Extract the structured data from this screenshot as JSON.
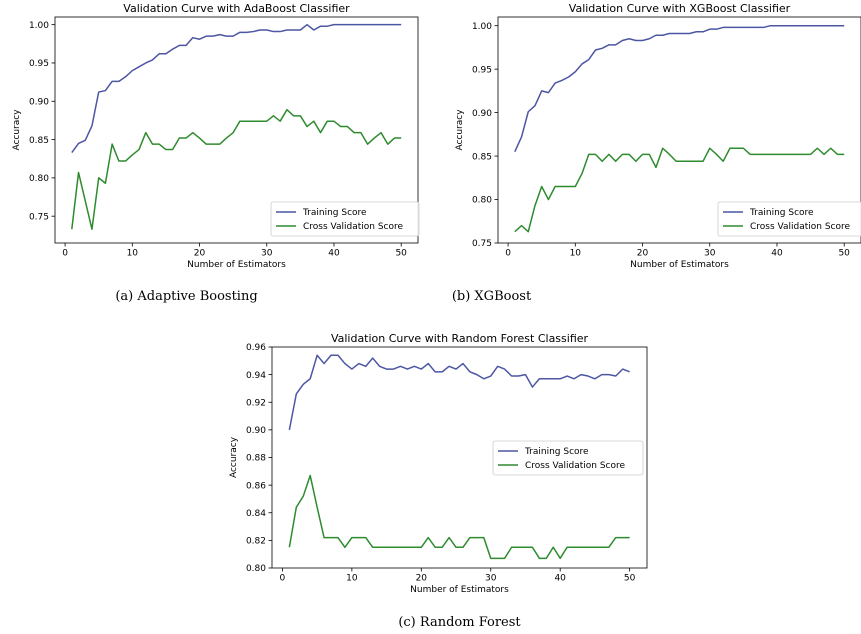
{
  "chart_data": [
    {
      "type": "line",
      "title": "Validation Curve with AdaBoost Classifier",
      "xlabel": "Number of Estimators",
      "ylabel": "Accuracy",
      "caption": "(a) Adaptive Boosting",
      "xlim": [
        -1.5,
        52.5
      ],
      "ylim": [
        0.715,
        1.01
      ],
      "xticks": [
        0,
        10,
        20,
        30,
        40,
        50
      ],
      "yticks": [
        0.75,
        0.8,
        0.85,
        0.9,
        0.95,
        1.0
      ],
      "legend_position": "lower-right",
      "series": [
        {
          "name": "Training Score",
          "color": "#4c56a3",
          "x": [
            1,
            2,
            3,
            4,
            5,
            6,
            7,
            8,
            9,
            10,
            11,
            12,
            13,
            14,
            15,
            16,
            17,
            18,
            19,
            20,
            21,
            22,
            23,
            24,
            25,
            26,
            27,
            28,
            29,
            30,
            31,
            32,
            33,
            34,
            35,
            36,
            37,
            38,
            39,
            40,
            41,
            42,
            43,
            44,
            45,
            46,
            47,
            48,
            49,
            50
          ],
          "values": [
            0.833,
            0.845,
            0.849,
            0.868,
            0.912,
            0.914,
            0.926,
            0.926,
            0.932,
            0.94,
            0.945,
            0.95,
            0.954,
            0.962,
            0.962,
            0.968,
            0.973,
            0.973,
            0.983,
            0.981,
            0.985,
            0.985,
            0.987,
            0.985,
            0.985,
            0.99,
            0.99,
            0.991,
            0.993,
            0.993,
            0.991,
            0.991,
            0.993,
            0.993,
            0.993,
            1.0,
            0.993,
            0.998,
            0.998,
            1.0,
            1.0,
            1.0,
            1.0,
            1.0,
            1.0,
            1.0,
            1.0,
            1.0,
            1.0,
            1.0
          ]
        },
        {
          "name": "Cross Validation Score",
          "color": "#2e8b2e",
          "x": [
            1,
            2,
            3,
            4,
            5,
            6,
            7,
            8,
            9,
            10,
            11,
            12,
            13,
            14,
            15,
            16,
            17,
            18,
            19,
            20,
            21,
            22,
            23,
            24,
            25,
            26,
            27,
            28,
            29,
            30,
            31,
            32,
            33,
            34,
            35,
            36,
            37,
            38,
            39,
            40,
            41,
            42,
            43,
            44,
            45,
            46,
            47,
            48,
            49,
            50
          ],
          "values": [
            0.733,
            0.807,
            0.77,
            0.733,
            0.8,
            0.793,
            0.844,
            0.822,
            0.822,
            0.83,
            0.837,
            0.859,
            0.844,
            0.844,
            0.837,
            0.837,
            0.852,
            0.852,
            0.859,
            0.852,
            0.844,
            0.844,
            0.844,
            0.852,
            0.859,
            0.874,
            0.874,
            0.874,
            0.874,
            0.874,
            0.881,
            0.874,
            0.889,
            0.881,
            0.881,
            0.867,
            0.874,
            0.859,
            0.874,
            0.874,
            0.867,
            0.867,
            0.859,
            0.859,
            0.844,
            0.852,
            0.859,
            0.844,
            0.852,
            0.852
          ]
        }
      ]
    },
    {
      "type": "line",
      "title": "Validation Curve with XGBoost Classifier",
      "xlabel": "Number of Estimators",
      "ylabel": "Accuracy",
      "caption": "(b) XGBoost",
      "xlim": [
        -1.5,
        52.5
      ],
      "ylim": [
        0.75,
        1.01
      ],
      "xticks": [
        0,
        10,
        20,
        30,
        40,
        50
      ],
      "yticks": [
        0.75,
        0.8,
        0.85,
        0.9,
        0.95,
        1.0
      ],
      "legend_position": "lower-right",
      "series": [
        {
          "name": "Training Score",
          "color": "#4c56a3",
          "x": [
            1,
            2,
            3,
            4,
            5,
            6,
            7,
            8,
            9,
            10,
            11,
            12,
            13,
            14,
            15,
            16,
            17,
            18,
            19,
            20,
            21,
            22,
            23,
            24,
            25,
            26,
            27,
            28,
            29,
            30,
            31,
            32,
            33,
            34,
            35,
            36,
            37,
            38,
            39,
            40,
            41,
            42,
            43,
            44,
            45,
            46,
            47,
            48,
            49,
            50
          ],
          "values": [
            0.855,
            0.872,
            0.901,
            0.908,
            0.925,
            0.923,
            0.934,
            0.937,
            0.941,
            0.947,
            0.956,
            0.961,
            0.972,
            0.974,
            0.978,
            0.978,
            0.983,
            0.985,
            0.983,
            0.983,
            0.985,
            0.989,
            0.989,
            0.991,
            0.991,
            0.991,
            0.991,
            0.993,
            0.993,
            0.996,
            0.996,
            0.998,
            0.998,
            0.998,
            0.998,
            0.998,
            0.998,
            0.998,
            1.0,
            1.0,
            1.0,
            1.0,
            1.0,
            1.0,
            1.0,
            1.0,
            1.0,
            1.0,
            1.0,
            1.0
          ]
        },
        {
          "name": "Cross Validation Score",
          "color": "#2e8b2e",
          "x": [
            1,
            2,
            3,
            4,
            5,
            6,
            7,
            8,
            9,
            10,
            11,
            12,
            13,
            14,
            15,
            16,
            17,
            18,
            19,
            20,
            21,
            22,
            23,
            24,
            25,
            26,
            27,
            28,
            29,
            30,
            31,
            32,
            33,
            34,
            35,
            36,
            37,
            38,
            39,
            40,
            41,
            42,
            43,
            44,
            45,
            46,
            47,
            48,
            49,
            50
          ],
          "values": [
            0.763,
            0.77,
            0.763,
            0.793,
            0.815,
            0.8,
            0.815,
            0.815,
            0.815,
            0.815,
            0.83,
            0.852,
            0.852,
            0.844,
            0.852,
            0.844,
            0.852,
            0.852,
            0.844,
            0.852,
            0.852,
            0.837,
            0.859,
            0.852,
            0.844,
            0.844,
            0.844,
            0.844,
            0.844,
            0.859,
            0.852,
            0.844,
            0.859,
            0.859,
            0.859,
            0.852,
            0.852,
            0.852,
            0.852,
            0.852,
            0.852,
            0.852,
            0.852,
            0.852,
            0.852,
            0.859,
            0.852,
            0.859,
            0.852,
            0.852
          ]
        }
      ]
    },
    {
      "type": "line",
      "title": "Validation Curve with Random Forest Classifier",
      "xlabel": "Number of Estimators",
      "ylabel": "Accuracy",
      "caption": "(c) Random Forest",
      "xlim": [
        -1.5,
        52.5
      ],
      "ylim": [
        0.8,
        0.96
      ],
      "xticks": [
        0,
        10,
        20,
        30,
        40,
        50
      ],
      "yticks": [
        0.8,
        0.82,
        0.84,
        0.86,
        0.88,
        0.9,
        0.92,
        0.94,
        0.96
      ],
      "legend_position": "center-right",
      "series": [
        {
          "name": "Training Score",
          "color": "#4c56a3",
          "x": [
            1,
            2,
            3,
            4,
            5,
            6,
            7,
            8,
            9,
            10,
            11,
            12,
            13,
            14,
            15,
            16,
            17,
            18,
            19,
            20,
            21,
            22,
            23,
            24,
            25,
            26,
            27,
            28,
            29,
            30,
            31,
            32,
            33,
            34,
            35,
            36,
            37,
            38,
            39,
            40,
            41,
            42,
            43,
            44,
            45,
            46,
            47,
            48,
            49,
            50
          ],
          "values": [
            0.9,
            0.926,
            0.933,
            0.937,
            0.954,
            0.948,
            0.954,
            0.954,
            0.948,
            0.944,
            0.948,
            0.946,
            0.952,
            0.946,
            0.944,
            0.944,
            0.946,
            0.944,
            0.946,
            0.944,
            0.948,
            0.942,
            0.942,
            0.946,
            0.944,
            0.948,
            0.942,
            0.94,
            0.937,
            0.939,
            0.946,
            0.944,
            0.939,
            0.939,
            0.94,
            0.931,
            0.937,
            0.937,
            0.937,
            0.937,
            0.939,
            0.937,
            0.94,
            0.939,
            0.937,
            0.94,
            0.94,
            0.939,
            0.944,
            0.942
          ]
        },
        {
          "name": "Cross Validation Score",
          "color": "#2e8b2e",
          "x": [
            1,
            2,
            3,
            4,
            5,
            6,
            7,
            8,
            9,
            10,
            11,
            12,
            13,
            14,
            15,
            16,
            17,
            18,
            19,
            20,
            21,
            22,
            23,
            24,
            25,
            26,
            27,
            28,
            29,
            30,
            31,
            32,
            33,
            34,
            35,
            36,
            37,
            38,
            39,
            40,
            41,
            42,
            43,
            44,
            45,
            46,
            47,
            48,
            49,
            50
          ],
          "values": [
            0.815,
            0.844,
            0.852,
            0.867,
            0.844,
            0.822,
            0.822,
            0.822,
            0.815,
            0.822,
            0.822,
            0.822,
            0.815,
            0.815,
            0.815,
            0.815,
            0.815,
            0.815,
            0.815,
            0.815,
            0.822,
            0.815,
            0.815,
            0.822,
            0.815,
            0.815,
            0.822,
            0.822,
            0.822,
            0.807,
            0.807,
            0.807,
            0.815,
            0.815,
            0.815,
            0.815,
            0.807,
            0.807,
            0.815,
            0.807,
            0.815,
            0.815,
            0.815,
            0.815,
            0.815,
            0.815,
            0.815,
            0.822,
            0.822,
            0.822
          ]
        }
      ]
    }
  ]
}
